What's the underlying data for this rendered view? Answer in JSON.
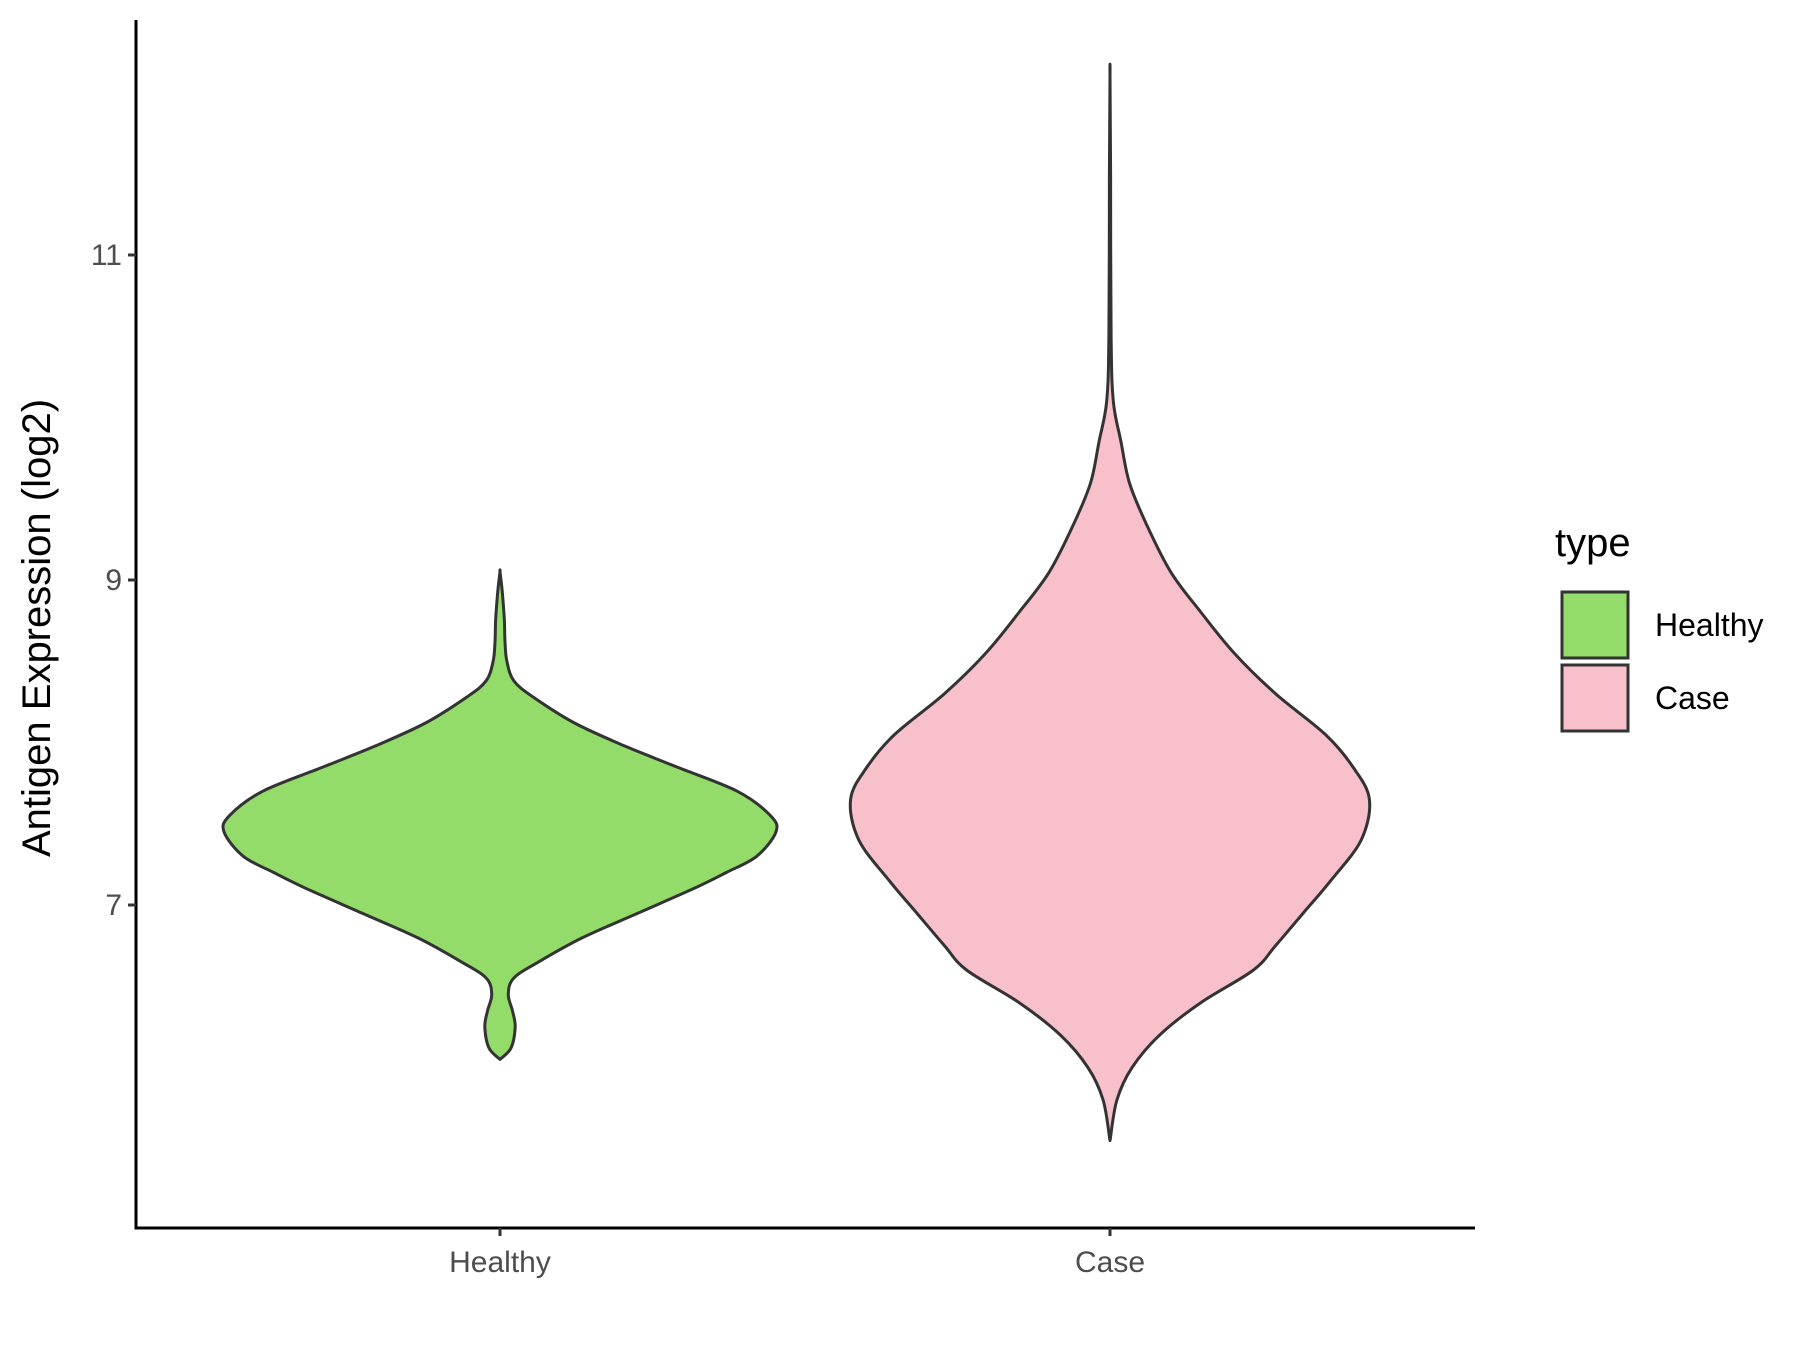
{
  "chart_data": {
    "type": "violin",
    "title": "",
    "xlabel": "",
    "ylabel": "Antigen Expression (log2)",
    "categories": [
      "Healthy",
      "Case"
    ],
    "y_ticks": [
      7,
      9,
      11
    ],
    "ylim": [
      5.1,
      12.5
    ],
    "grid": false,
    "legend": {
      "title": "type",
      "position": "right",
      "entries": [
        {
          "label": "Healthy",
          "color": "#93dc6a"
        },
        {
          "label": "Case",
          "color": "#f7c0cb"
        }
      ]
    },
    "series": [
      {
        "name": "Healthy",
        "color": "#93dc6a",
        "profile": [
          [
            6.05,
            0.0
          ],
          [
            6.12,
            0.04
          ],
          [
            6.25,
            0.055
          ],
          [
            6.35,
            0.045
          ],
          [
            6.45,
            0.03
          ],
          [
            6.55,
            0.05
          ],
          [
            6.65,
            0.14
          ],
          [
            6.8,
            0.3
          ],
          [
            6.95,
            0.5
          ],
          [
            7.1,
            0.7
          ],
          [
            7.2,
            0.82
          ],
          [
            7.3,
            0.93
          ],
          [
            7.45,
            1.0
          ],
          [
            7.55,
            0.98
          ],
          [
            7.7,
            0.86
          ],
          [
            7.85,
            0.64
          ],
          [
            7.98,
            0.45
          ],
          [
            8.12,
            0.27
          ],
          [
            8.28,
            0.12
          ],
          [
            8.38,
            0.05
          ],
          [
            8.5,
            0.025
          ],
          [
            8.62,
            0.018
          ],
          [
            8.75,
            0.016
          ],
          [
            8.85,
            0.012
          ],
          [
            8.95,
            0.007
          ],
          [
            9.05,
            0.0
          ]
        ]
      },
      {
        "name": "Case",
        "color": "#f7c0cb",
        "profile": [
          [
            5.55,
            0.0
          ],
          [
            5.8,
            0.025
          ],
          [
            6.0,
            0.08
          ],
          [
            6.2,
            0.18
          ],
          [
            6.4,
            0.33
          ],
          [
            6.6,
            0.52
          ],
          [
            6.75,
            0.6
          ],
          [
            6.95,
            0.7
          ],
          [
            7.15,
            0.8
          ],
          [
            7.4,
            0.91
          ],
          [
            7.65,
            0.94
          ],
          [
            7.85,
            0.88
          ],
          [
            8.05,
            0.78
          ],
          [
            8.3,
            0.6
          ],
          [
            8.55,
            0.45
          ],
          [
            8.8,
            0.33
          ],
          [
            9.05,
            0.22
          ],
          [
            9.35,
            0.13
          ],
          [
            9.6,
            0.07
          ],
          [
            9.85,
            0.04
          ],
          [
            10.1,
            0.012
          ],
          [
            10.5,
            0.004
          ],
          [
            11.5,
            0.002
          ],
          [
            12.1,
            0.0
          ]
        ]
      }
    ]
  }
}
